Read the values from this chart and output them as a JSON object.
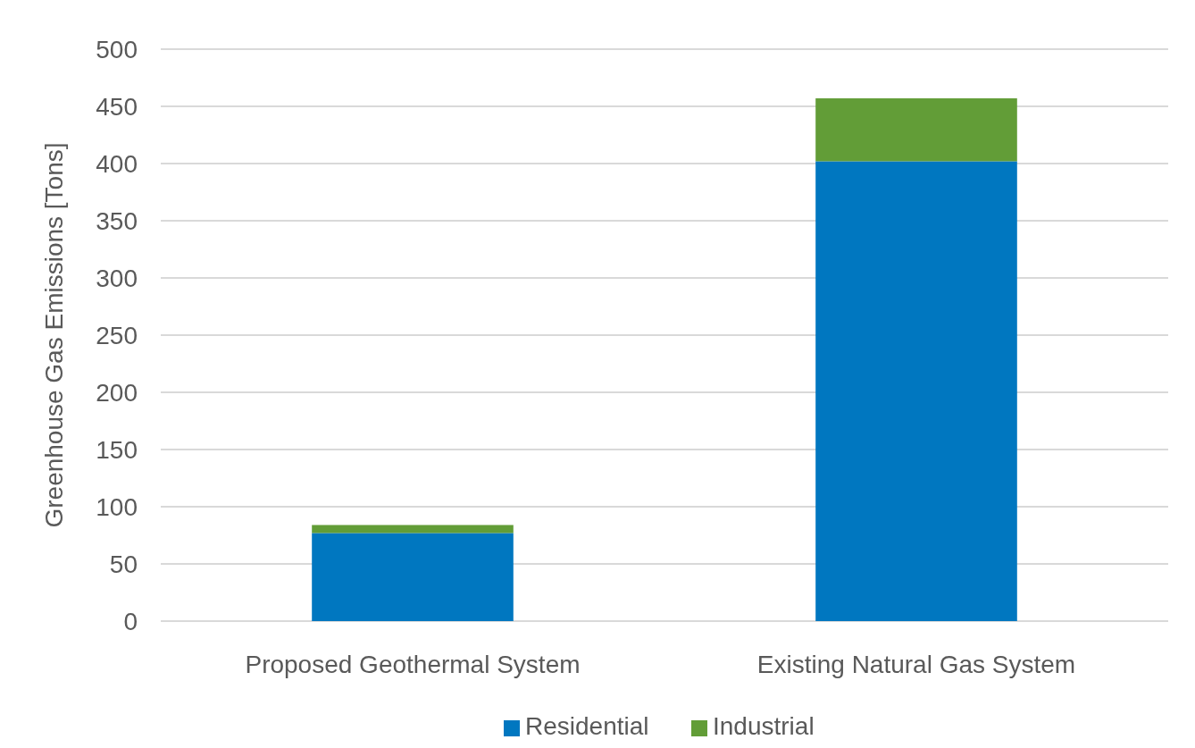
{
  "chart_data": {
    "type": "bar",
    "stacked": true,
    "ylabel": "Greenhouse Gas Emissions [Tons]",
    "categories": [
      "Proposed Geothermal System",
      "Existing Natural Gas System"
    ],
    "series": [
      {
        "name": "Residential",
        "color": "#0077c0",
        "values": [
          77,
          402
        ]
      },
      {
        "name": "Industrial",
        "color": "#629d37",
        "values": [
          7,
          55
        ]
      }
    ],
    "ylim": [
      0,
      500
    ],
    "yticks": [
      0,
      50,
      100,
      150,
      200,
      250,
      300,
      350,
      400,
      450,
      500
    ],
    "grid": "y",
    "legend": "bottom"
  }
}
